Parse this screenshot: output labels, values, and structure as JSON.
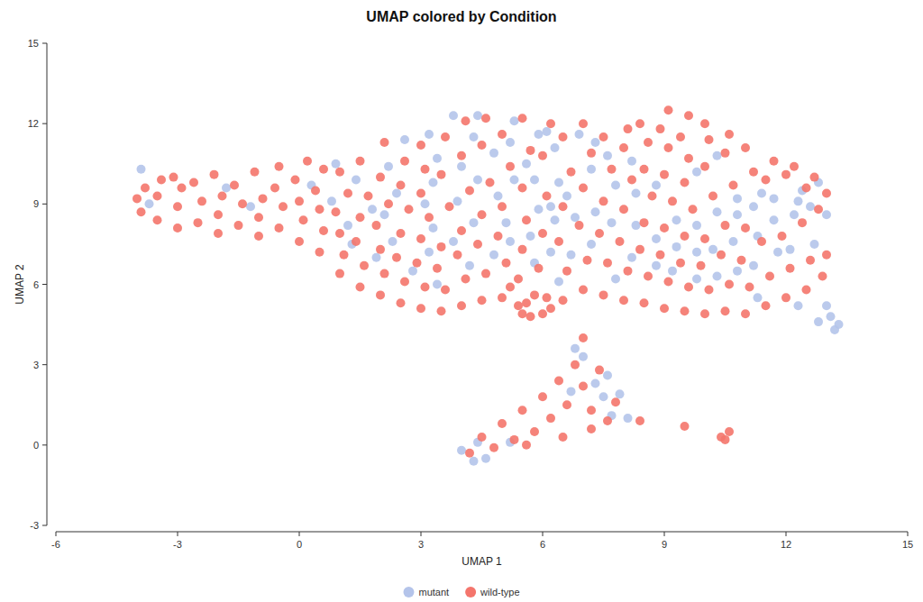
{
  "chart_data": {
    "type": "scatter",
    "title": "UMAP colored by Condition",
    "x_label": "UMAP 1",
    "y_label": "UMAP 2",
    "xlim": [
      -6,
      15
    ],
    "ylim": [
      -3,
      15
    ],
    "xticks": [
      -6,
      -3,
      0,
      3,
      6,
      9,
      12,
      15
    ],
    "yticks": [
      -3,
      0,
      3,
      6,
      9,
      12,
      15
    ],
    "legend": "bottom",
    "series": [
      {
        "name": "mutant",
        "color": "#b4c4ea",
        "marker": "circle",
        "x": [
          -3.9,
          -3.7,
          -1.8,
          -1.2,
          0.3,
          0.8,
          0.9,
          1.3,
          1.2,
          1.8,
          1.4,
          1.9,
          2.3,
          2.1,
          2.4,
          2.2,
          2.6,
          2.8,
          3.2,
          3.3,
          3.1,
          3.3,
          3.4,
          3.2,
          3.8,
          3.4,
          3.8,
          4.3,
          3.9,
          4.4,
          4,
          4.3,
          4.4,
          4.2,
          4.8,
          5.1,
          4.9,
          5.3,
          4.8,
          5.2,
          5.3,
          5.2,
          5.7,
          5.9,
          5.8,
          5.6,
          5.9,
          5.8,
          6.2,
          6.3,
          6.2,
          6.4,
          6.3,
          6.1,
          6.4,
          6.8,
          6.6,
          6.7,
          6.9,
          7.2,
          7.3,
          7.2,
          7.3,
          7.8,
          7.7,
          7.8,
          7.6,
          8.2,
          8.3,
          8.3,
          8.2,
          8.8,
          8.8,
          8.8,
          9.3,
          9.3,
          9.2,
          9.8,
          9.8,
          9.8,
          9.8,
          10.3,
          10.2,
          10.3,
          10.8,
          10.7,
          10.8,
          10.3,
          10.8,
          11.2,
          11.3,
          11.2,
          11.4,
          11.7,
          11.8,
          11.7,
          11.3,
          12.2,
          12.3,
          12.1,
          12.4,
          12.6,
          12.7,
          12.3,
          12.8,
          13,
          13,
          13.1,
          13.3,
          13.2,
          12.8,
          4,
          4.3,
          4.6,
          4.4,
          5.2,
          6.8,
          7,
          7.3,
          7.5,
          7.7,
          7.9,
          7.6,
          8.1,
          6.7
        ],
        "values": [
          10.3,
          9,
          9.6,
          8.9,
          9.7,
          9.1,
          10.5,
          7.5,
          8.2,
          8.8,
          9.9,
          7,
          7.6,
          8.6,
          9.4,
          10.4,
          11.4,
          6.5,
          7.2,
          8.1,
          9,
          9.8,
          10.7,
          11.6,
          12.3,
          6,
          7.6,
          8.3,
          9.1,
          9.9,
          10.4,
          11.5,
          12.3,
          6.7,
          7.1,
          8.3,
          9.3,
          9.9,
          10.9,
          11.3,
          12.1,
          7.6,
          7.8,
          8.8,
          9.9,
          10.5,
          11.6,
          6.8,
          7.2,
          8.4,
          8.9,
          9.8,
          11.1,
          11.7,
          6.1,
          8.5,
          9.3,
          7.1,
          11.6,
          7.5,
          8.7,
          10.3,
          11.3,
          9.7,
          8.3,
          6.2,
          10.8,
          7,
          8.2,
          9.4,
          10.6,
          7.7,
          9.7,
          6.7,
          7.4,
          8.4,
          6.5,
          7.2,
          8.2,
          6.2,
          10.2,
          8.7,
          7.3,
          6.3,
          8.6,
          7.6,
          6.5,
          10.8,
          9.2,
          8.9,
          7.8,
          6.7,
          9.4,
          8.4,
          7.2,
          9.2,
          5.5,
          8.6,
          9.1,
          7.3,
          9.5,
          8.9,
          7.5,
          5.2,
          9.8,
          8.6,
          5.2,
          4.8,
          4.5,
          4.3,
          4.6,
          -0.2,
          -0.6,
          -0.5,
          0.1,
          0.1,
          3.6,
          3.3,
          2.3,
          1.8,
          1.1,
          1.9,
          2.6,
          1,
          2
        ]
      },
      {
        "name": "wild-type",
        "color": "#f4756c",
        "marker": "circle",
        "x": [
          -4,
          -3.9,
          -3.8,
          -3.5,
          -3.5,
          -3.4,
          -3,
          -3,
          -2.9,
          -3.1,
          -2.5,
          -2.4,
          -2.6,
          -2,
          -2,
          -1.9,
          -2.1,
          -1.5,
          -1.4,
          -1.6,
          -1,
          -1,
          -0.9,
          -1.1,
          -0.5,
          -0.4,
          -0.6,
          -0.5,
          0,
          0.1,
          0,
          -0.1,
          0.2,
          0.5,
          0.6,
          0.5,
          0.4,
          0.6,
          1,
          1.1,
          1,
          0.9,
          1.2,
          1,
          1.5,
          1.6,
          1.4,
          1.5,
          1.7,
          1.5,
          2,
          2.1,
          2,
          1.9,
          2.2,
          2,
          2.1,
          2.5,
          2.6,
          2.4,
          2.5,
          2.7,
          2.5,
          2.6,
          3,
          3.1,
          2.9,
          3,
          3.2,
          3,
          3.1,
          3,
          3.5,
          3.6,
          3.4,
          3.5,
          3.7,
          3.5,
          3.6,
          4,
          4.1,
          3.9,
          4,
          4.2,
          4,
          4.1,
          4.5,
          4.6,
          4.4,
          4.5,
          4.7,
          4.5,
          4.6,
          5,
          5.2,
          5.4,
          5.1,
          4.9,
          5,
          5.2,
          5,
          5.5,
          5.6,
          5.7,
          5.8,
          5.4,
          5.5,
          5.6,
          5.5,
          5.7,
          5.5,
          6,
          6.1,
          6.2,
          5.9,
          6,
          6.1,
          6,
          6.2,
          6.5,
          6.6,
          6.4,
          6.5,
          6.7,
          6.5,
          7,
          7.1,
          6.9,
          7,
          7.2,
          7,
          7.5,
          7.6,
          7.4,
          7.5,
          7.7,
          7.5,
          8,
          8.1,
          7.9,
          8,
          8.2,
          8,
          8.1,
          8.5,
          8.6,
          8.4,
          8.5,
          8.7,
          8.5,
          8.6,
          8.4,
          9,
          9.1,
          8.9,
          9,
          9.2,
          9,
          9.1,
          8.9,
          9.1,
          9.5,
          9.6,
          9.4,
          9.5,
          9.7,
          9.5,
          9.6,
          9.4,
          9.6,
          10,
          10.1,
          9.9,
          10,
          10.2,
          10,
          10.1,
          10,
          10.5,
          10.6,
          10.4,
          10.5,
          10.7,
          10.5,
          10.6,
          11,
          11.1,
          10.9,
          11,
          11.2,
          11,
          11.5,
          11.6,
          11.4,
          11.5,
          11.7,
          12,
          12.1,
          11.9,
          12,
          12.2,
          12.5,
          12.6,
          12.4,
          12.5,
          12.7,
          12.9,
          13,
          12.8,
          13,
          4.2,
          4.5,
          4.8,
          5,
          5.3,
          5.5,
          5.8,
          6,
          6.2,
          6.4,
          6.6,
          6.8,
          7,
          7,
          7.2,
          7.4,
          7.6,
          7.8,
          5.6,
          6.5,
          7.2,
          8.4,
          9.5,
          10.4,
          10.6,
          10.5
        ],
        "values": [
          9.2,
          8.7,
          9.6,
          8.4,
          9.3,
          9.9,
          8.1,
          8.9,
          9.6,
          10,
          8.3,
          9.1,
          9.8,
          7.9,
          8.6,
          9.3,
          10.1,
          8.2,
          9,
          9.7,
          7.8,
          8.5,
          9.2,
          10.2,
          8.1,
          8.9,
          9.6,
          10.4,
          7.6,
          8.4,
          9.1,
          9.9,
          10.6,
          7.2,
          8,
          8.8,
          9.5,
          10.3,
          6.4,
          7.1,
          7.9,
          8.7,
          9.4,
          10.2,
          5.9,
          6.7,
          7.6,
          8.5,
          9.3,
          10.6,
          5.6,
          6.4,
          7.3,
          8.2,
          9,
          10,
          11.3,
          5.3,
          6.1,
          7,
          7.9,
          8.8,
          9.7,
          10.6,
          5.1,
          5.9,
          6.8,
          7.7,
          8.5,
          9.4,
          10.3,
          11.2,
          5,
          5.8,
          6.6,
          7.4,
          8.9,
          10.1,
          11.5,
          5.2,
          6.2,
          7.1,
          8,
          9.5,
          10.8,
          12.1,
          5.4,
          6.4,
          7.5,
          8.6,
          9.8,
          11.2,
          12.2,
          5.5,
          5.9,
          5.2,
          6.8,
          7.8,
          8.9,
          10.4,
          11.6,
          4.9,
          5.3,
          4.8,
          5.6,
          6.2,
          7.3,
          8.4,
          9.6,
          11,
          12.2,
          4.9,
          5.5,
          5.1,
          6.6,
          7.9,
          9.3,
          10.8,
          12,
          5.4,
          6.5,
          7.6,
          8.9,
          10.2,
          11.5,
          5.8,
          6.9,
          8.2,
          9.6,
          10.9,
          12,
          5.6,
          6.8,
          7.9,
          9.1,
          10.3,
          11.5,
          5.4,
          6.5,
          7.6,
          8.8,
          9.9,
          11.1,
          11.8,
          5.3,
          6.3,
          7.3,
          8.3,
          9.3,
          10.3,
          11.3,
          12,
          5.1,
          6.1,
          7.1,
          8.1,
          9.1,
          10.1,
          11.1,
          11.8,
          12.5,
          5,
          5.9,
          6.8,
          7.8,
          8.8,
          9.8,
          10.7,
          11.5,
          12.3,
          4.9,
          5.8,
          6.7,
          7.7,
          9.3,
          10.4,
          11.4,
          12,
          5,
          6,
          7.1,
          8.2,
          9.7,
          10.9,
          11.6,
          4.9,
          5.9,
          6.9,
          8.1,
          10.2,
          11.1,
          5.2,
          6.3,
          7.6,
          9.9,
          10.6,
          5.5,
          6.6,
          7.8,
          10.1,
          10.4,
          5.8,
          6.9,
          8.3,
          9.6,
          10,
          6.3,
          7.1,
          8.8,
          9.4,
          -0.3,
          0.3,
          -0.1,
          0.8,
          0.2,
          1.3,
          0.5,
          1.8,
          1,
          2.4,
          1.5,
          3,
          2.2,
          4,
          1.3,
          2.8,
          0.9,
          1.6,
          0,
          0.3,
          0.6,
          0.9,
          0.7,
          0.3,
          0.5,
          0.2
        ]
      }
    ]
  }
}
